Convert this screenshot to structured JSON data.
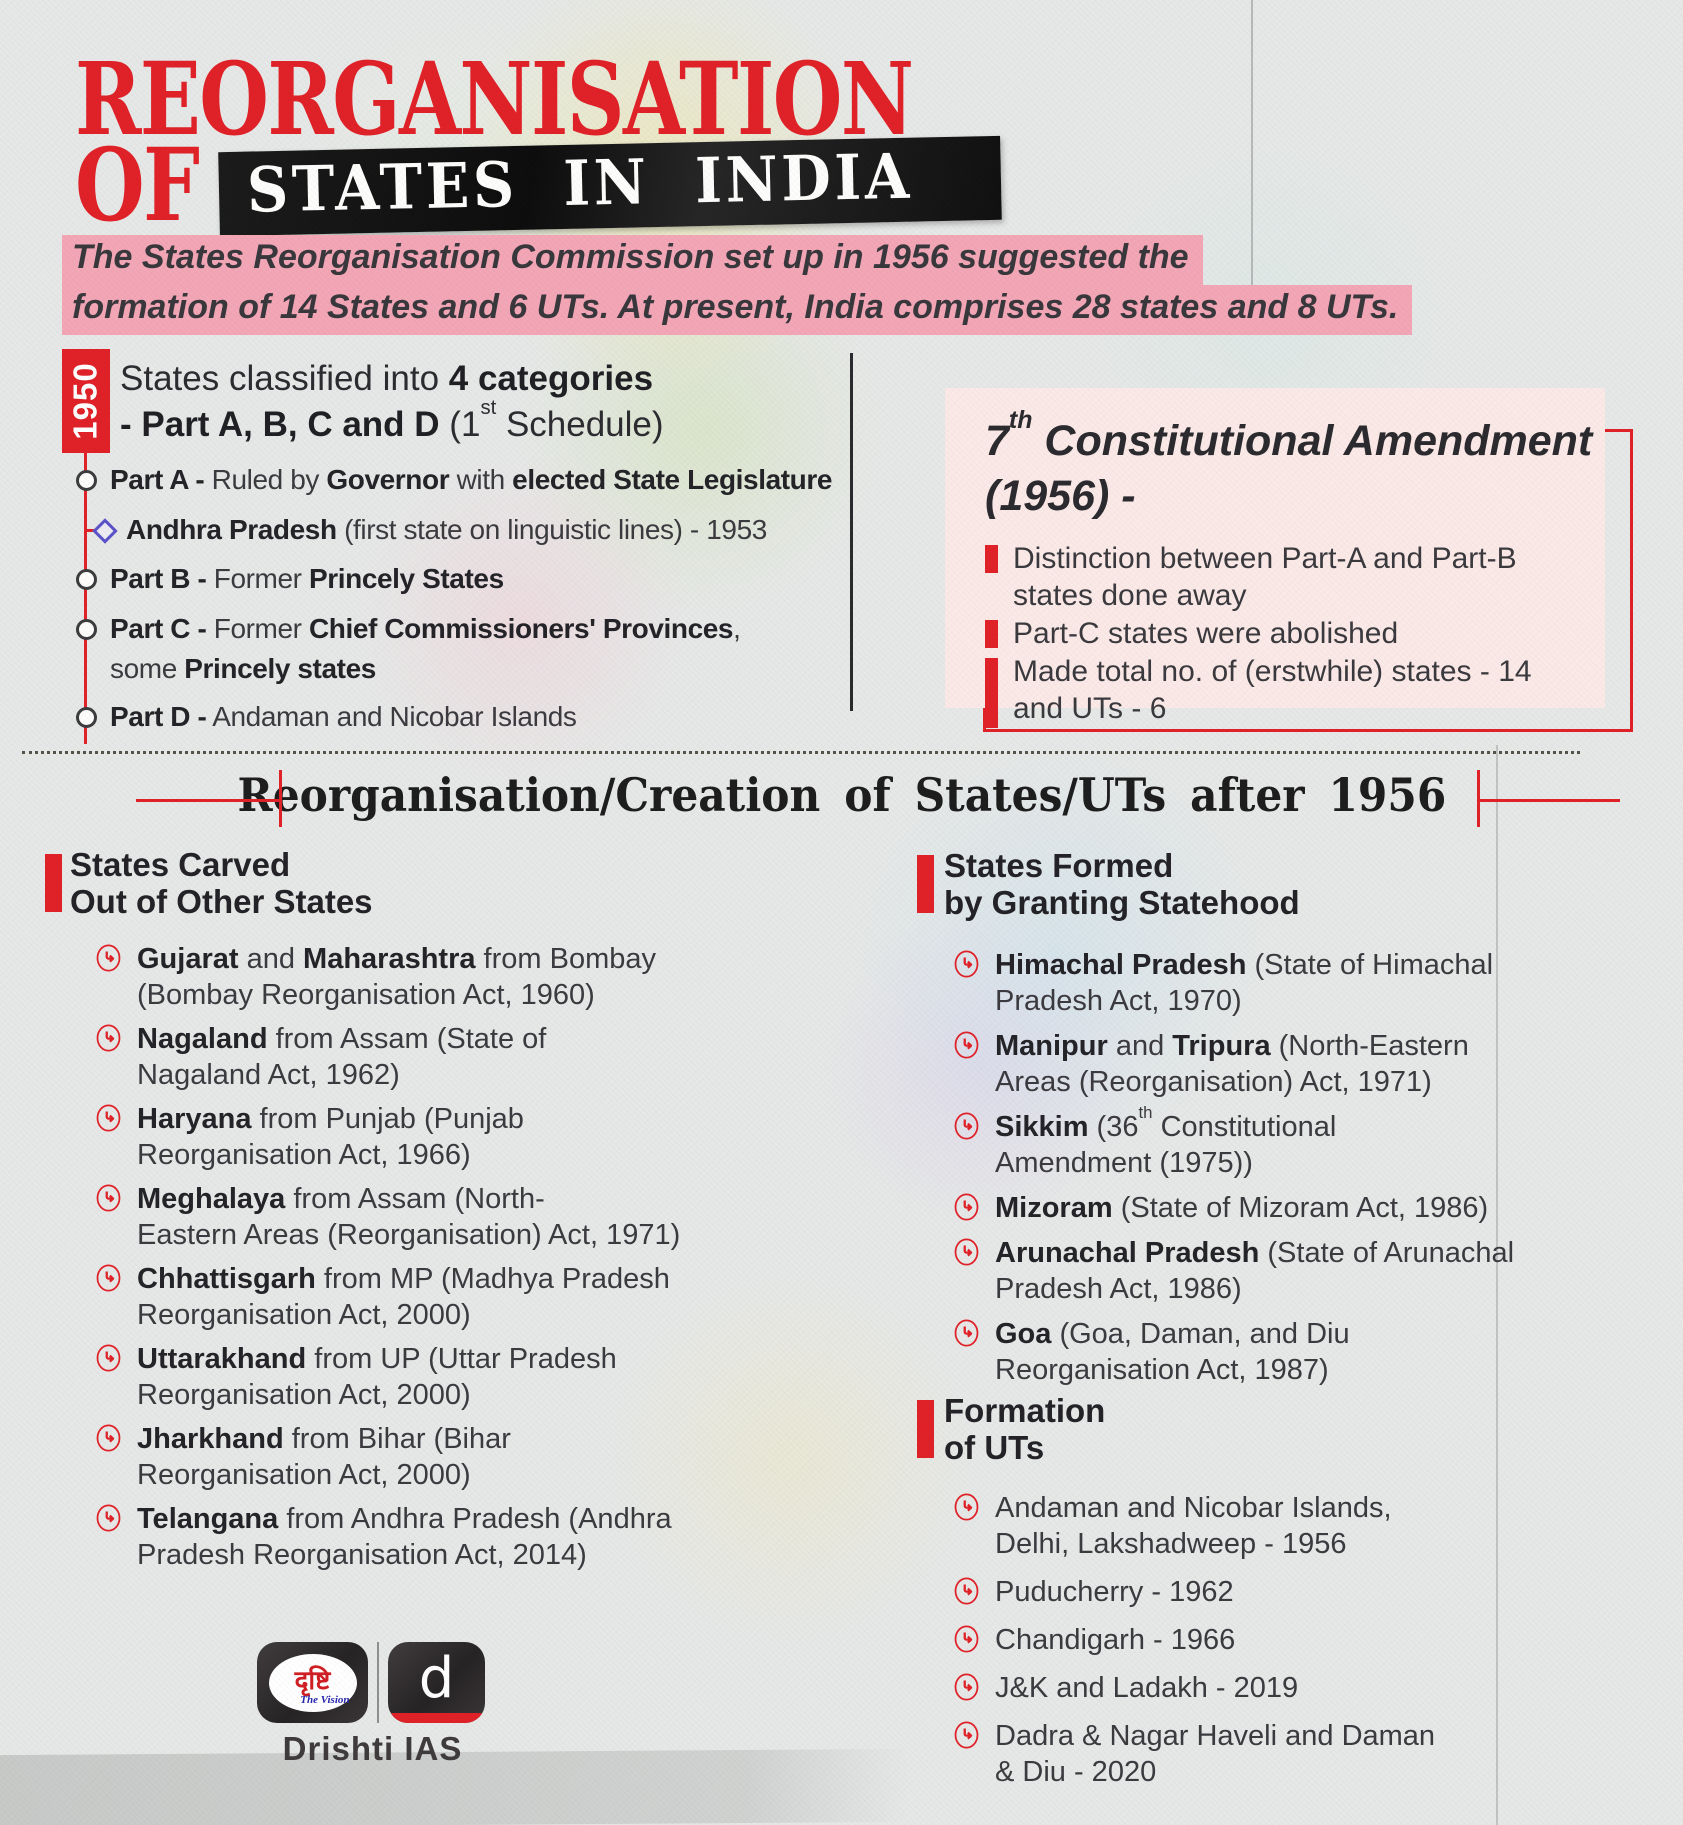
{
  "colors": {
    "accent_red": "#e02128",
    "highlight_pink": "#f3a6b6",
    "panel_pink": "#fbe9e7",
    "band_black": "#161616",
    "text_dark": "#2f2e33",
    "paper_gray": "#e6e8e7"
  },
  "header": {
    "title_line1": "REORGANISATION",
    "title_line2_word": "OF",
    "title_band": "STATES IN INDIA"
  },
  "intro": {
    "lines": [
      "The States Reorganisation Commission set up in 1956 suggested the",
      "formation of 14 States and 6 UTs. At present, India comprises 28 states and 8 UTs."
    ]
  },
  "era_1950": {
    "year": "1950",
    "heading_line1": "States classified into **4 categories**",
    "heading_line2": "**- Part A, B, C and D** (1^st^ Schedule)",
    "items": [
      {
        "marker": "circle",
        "text": "**Part A -** Ruled by **Governor** with **elected State Legislature**"
      },
      {
        "marker": "diamond",
        "text": "**Andhra Pradesh** (first state on linguistic lines) - 1953"
      },
      {
        "marker": "circle",
        "text": "**Part B -** Former **Princely States**"
      },
      {
        "marker": "circle",
        "text": "**Part C -** Former **Chief Commissioners' Provinces**,\nsome **Princely states**"
      },
      {
        "marker": "circle",
        "text": "**Part D -** Andaman and Nicobar Islands"
      }
    ]
  },
  "amendment": {
    "title_line1": "7^th^ Constitutional Amendment",
    "title_line2": "(1956) -",
    "bullets": [
      {
        "text": "Distinction between Part-A and Part-B\nstates done away",
        "tall": false
      },
      {
        "text": "Part-C states were abolished",
        "tall": false
      },
      {
        "text": "Made total no. of (erstwhile) states - 14\nand UTs - 6",
        "tall": true
      }
    ]
  },
  "section_1956": {
    "heading": "Reorganisation/Creation of States/UTs after 1956"
  },
  "carved": {
    "title_line1": "States Carved",
    "title_line2": "Out of Other States",
    "items": [
      "**Gujarat** and **Maharashtra** from Bombay\n(Bombay Reorganisation Act, 1960)",
      "**Nagaland** from Assam (State of\nNagaland Act, 1962)",
      "**Haryana** from Punjab (Punjab\nReorganisation Act, 1966)",
      "**Meghalaya** from Assam (North-\nEastern Areas (Reorganisation) Act, 1971)",
      "**Chhattisgarh** from MP (Madhya Pradesh\nReorganisation Act, 2000)",
      "**Uttarakhand** from UP (Uttar Pradesh\nReorganisation Act, 2000)",
      "**Jharkhand** from Bihar (Bihar\nReorganisation Act, 2000)",
      "**Telangana** from Andhra Pradesh (Andhra\nPradesh Reorganisation Act, 2014)"
    ]
  },
  "granted": {
    "title_line1": "States Formed",
    "title_line2": "by Granting Statehood",
    "items": [
      "**Himachal Pradesh** (State of Himachal\nPradesh Act, 1970)",
      "**Manipur** and **Tripura** (North-Eastern\nAreas (Reorganisation) Act, 1971)",
      "**Sikkim** (36^th^ Constitutional\nAmendment (1975))",
      "**Mizoram** (State of Mizoram Act, 1986)",
      "**Arunachal Pradesh** (State of Arunachal\nPradesh Act, 1986)",
      "**Goa** (Goa, Daman, and Diu\nReorganisation Act, 1987)"
    ]
  },
  "uts": {
    "title_line1": "Formation",
    "title_line2": "of UTs",
    "items": [
      "Andaman and Nicobar Islands,\nDelhi, Lakshadweep - 1956",
      "Puducherry - 1962",
      "Chandigarh - 1966",
      "J&K and Ladakh - 2019",
      "Dadra & Nagar Haveli and Daman\n& Diu - 2020"
    ]
  },
  "footer": {
    "logo_devanagari": "दृष्टि",
    "logo_tagline": "The Vision",
    "logo_letter": "d",
    "brand": "Drishti IAS"
  }
}
